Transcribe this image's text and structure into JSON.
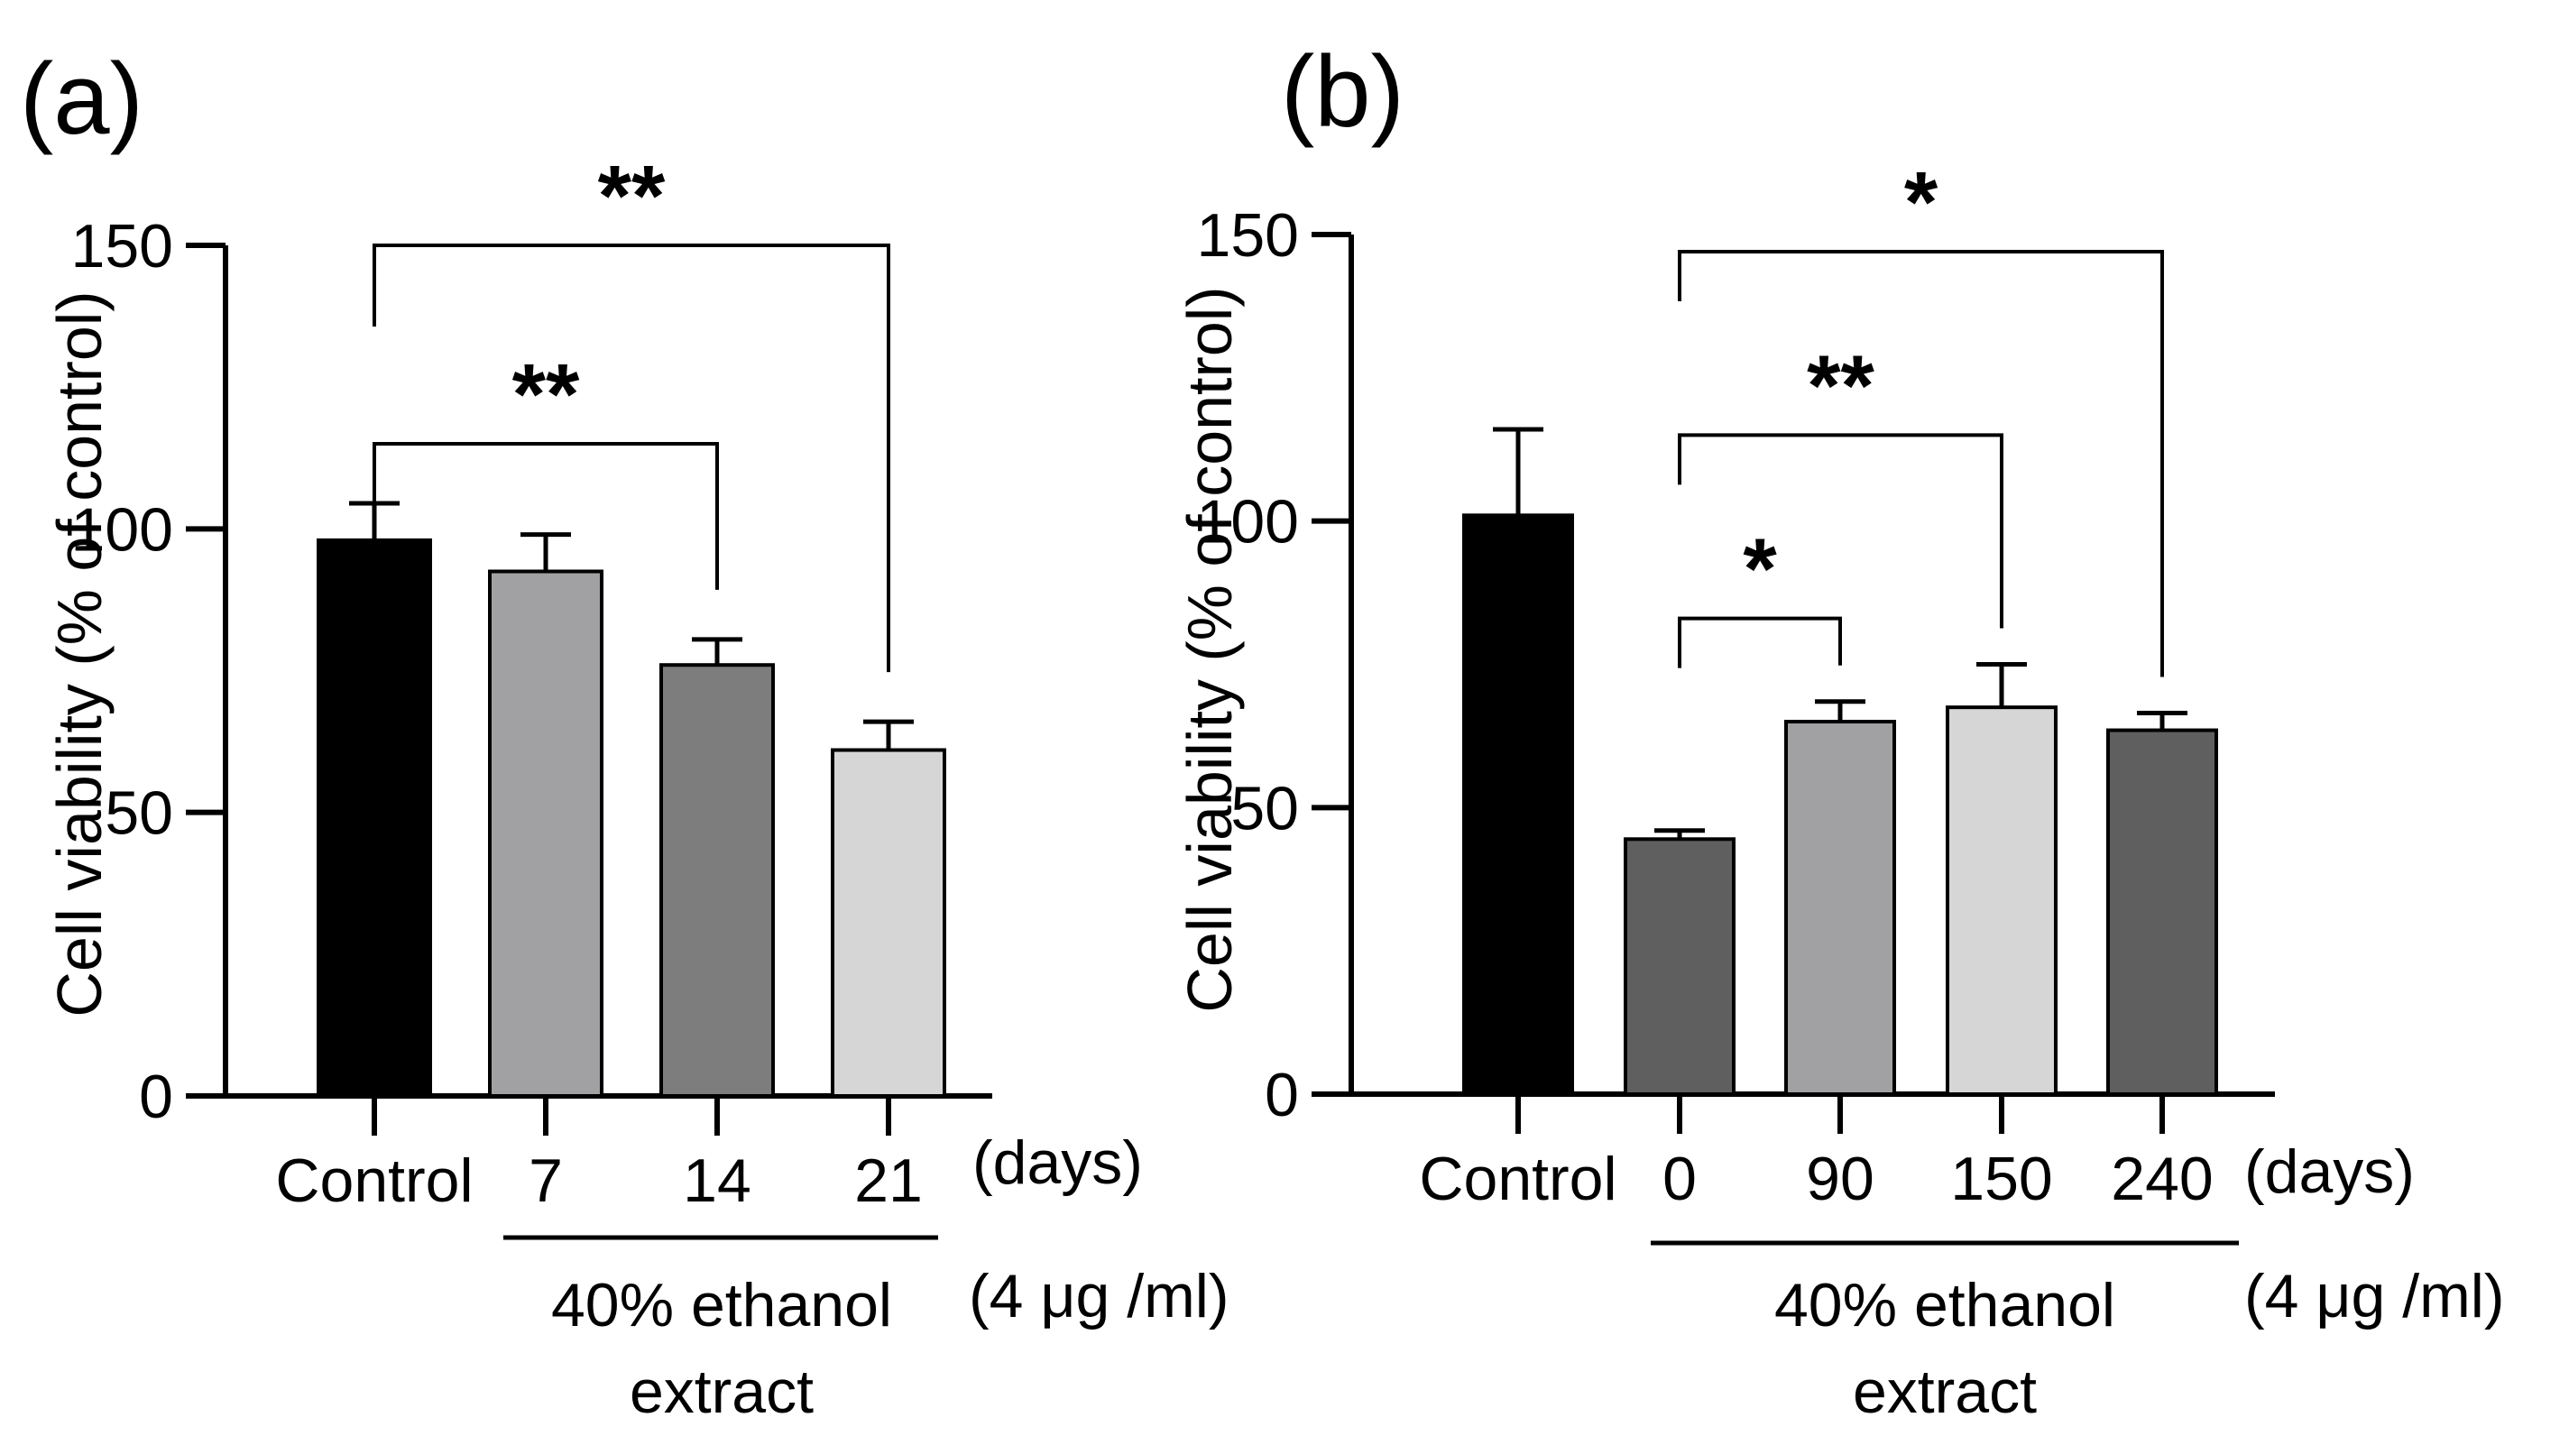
{
  "chart_data": [
    {
      "type": "bar",
      "panel_label": "(a)",
      "ylabel": "Cell viability (% of control)",
      "ylim": [
        0,
        150
      ],
      "yticks": [
        "0",
        "50",
        "100",
        "150"
      ],
      "categories": [
        "Control",
        "7",
        "14",
        "21"
      ],
      "values": [
        98,
        92.5,
        76,
        61
      ],
      "errors": [
        6.5,
        6.5,
        4.5,
        5
      ],
      "bar_colors": [
        "#000000",
        "#a1a1a4",
        "#7d7d7d",
        "#d6d6d6"
      ],
      "x_unit": "(days)",
      "group_label_line1": "40% ethanol",
      "group_label_line2": "extract",
      "concentration": "(4 μg /ml)",
      "significance": [
        {
          "from": 0,
          "to": 2,
          "label": "**",
          "level": 115
        },
        {
          "from": 0,
          "to": 3,
          "label": "**",
          "level": 150
        }
      ]
    },
    {
      "type": "bar",
      "panel_label": "(b)",
      "ylabel": "Cell viability (% of control)",
      "ylim": [
        0,
        150
      ],
      "yticks": [
        "0",
        "50",
        "100",
        "150"
      ],
      "categories": [
        "Control",
        "0",
        "90",
        "150",
        "240"
      ],
      "values": [
        101,
        44.5,
        65,
        67.5,
        63.5
      ],
      "errors": [
        15,
        1.5,
        3.5,
        7.5,
        3
      ],
      "bar_colors": [
        "#000000",
        "#5f5f5f",
        "#a1a1a4",
        "#d6d6d6",
        "#5f5f5f"
      ],
      "x_unit": "(days)",
      "group_label_line1": "40% ethanol",
      "group_label_line2": "extract",
      "concentration": "(4 μg /ml)",
      "significance": [
        {
          "from": 1,
          "to": 2,
          "label": "*",
          "level": 83
        },
        {
          "from": 1,
          "to": 3,
          "label": "**",
          "level": 115
        },
        {
          "from": 1,
          "to": 4,
          "label": "*",
          "level": 147
        }
      ]
    }
  ]
}
